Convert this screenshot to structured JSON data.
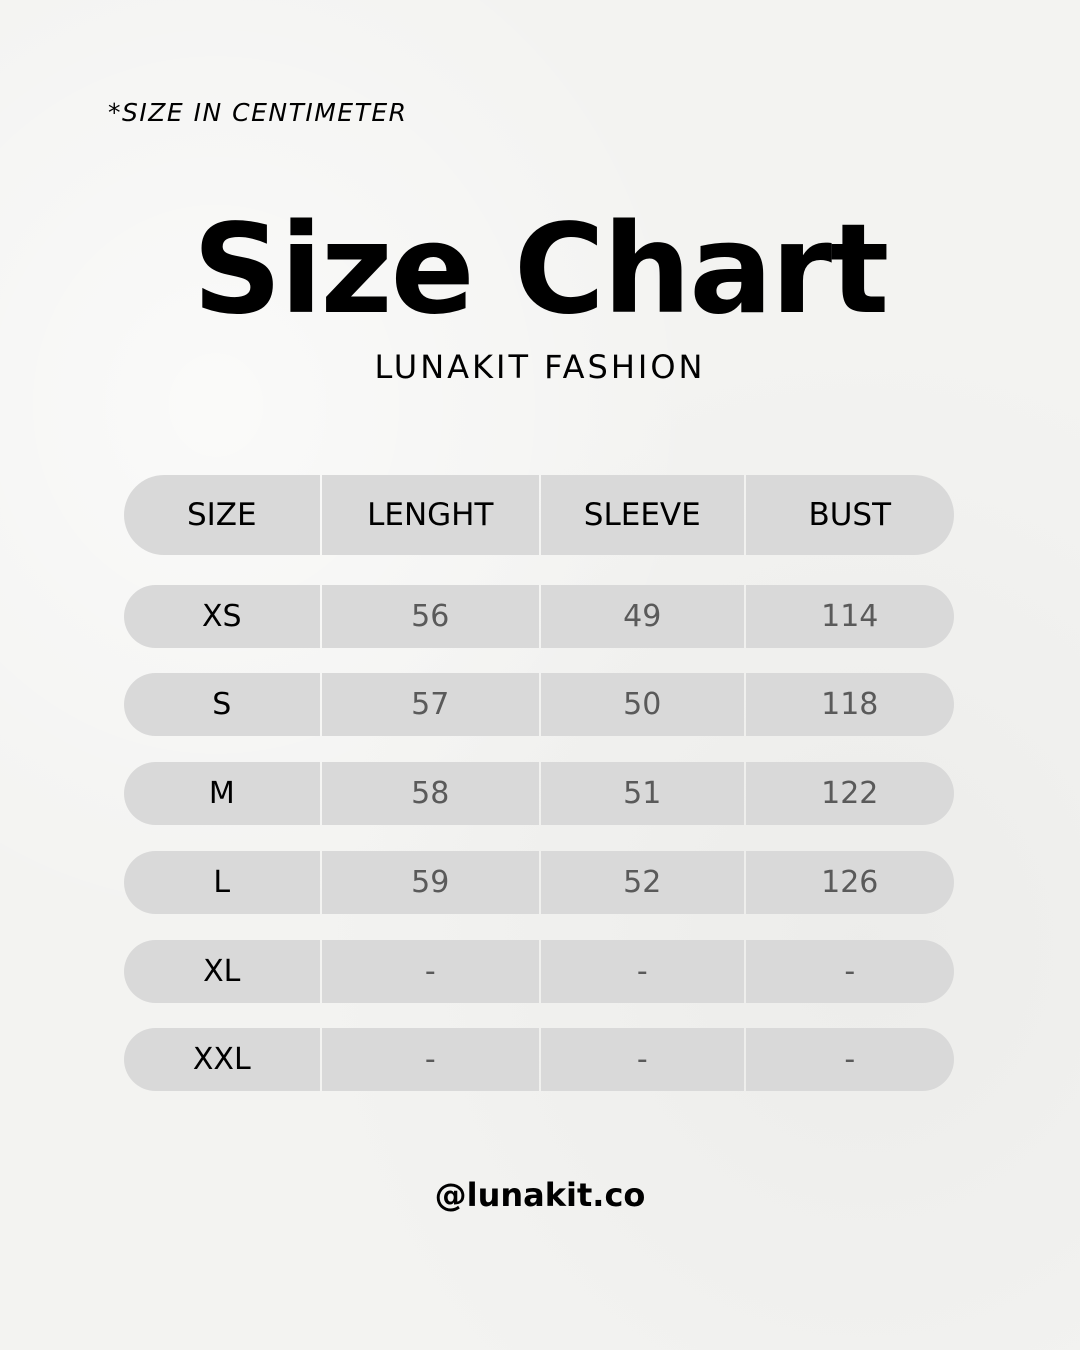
{
  "note": "*SIZE IN CENTIMETER",
  "title": "Size Chart",
  "subtitle": "LUNAKIT FASHION",
  "table": {
    "headers": [
      "SIZE",
      "LENGHT",
      "SLEEVE",
      "BUST"
    ],
    "rows": [
      [
        "XS",
        "56",
        "49",
        "114"
      ],
      [
        "S",
        "57",
        "50",
        "118"
      ],
      [
        "M",
        "58",
        "51",
        "122"
      ],
      [
        "L",
        "59",
        "52",
        "126"
      ],
      [
        "XL",
        "-",
        "-",
        "-"
      ],
      [
        "XXL",
        "-",
        "-",
        "-"
      ]
    ]
  },
  "footer": "@lunakit.co",
  "colors": {
    "background": "#f3f3f1",
    "cell": "#d9d9d9",
    "value_text": "#5a5a5a"
  }
}
